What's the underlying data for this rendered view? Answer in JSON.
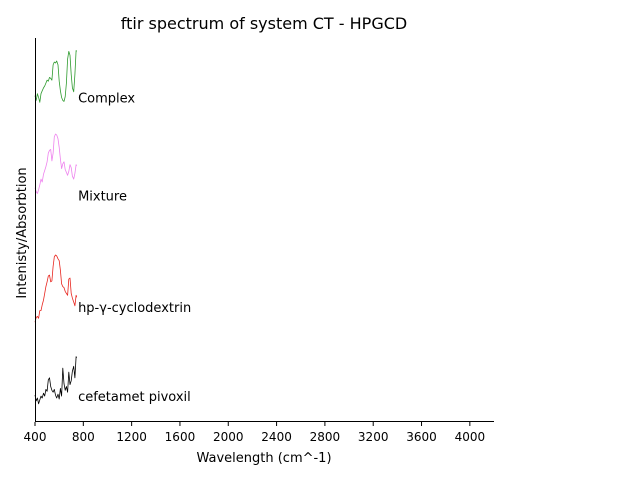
{
  "chart_data": {
    "type": "line",
    "title": "ftir spectrum of system CT - HPGCD",
    "xlabel": "Wavelength (cm^-1)",
    "ylabel": "Intenisty/Absorbtion",
    "xlim": [
      400,
      4200
    ],
    "x_ticks": [
      400,
      800,
      1200,
      1600,
      2000,
      2400,
      2800,
      3200,
      3600,
      4000
    ],
    "x_tick_labels": [
      "400",
      "800",
      "1200",
      "1600",
      "2000",
      "2400",
      "2800",
      "3200",
      "3600",
      "4000"
    ],
    "ylim": [
      0,
      4
    ],
    "grid": false,
    "legend": "none",
    "series": [
      {
        "name": "cefetamet pivoxil",
        "color": "#000000",
        "label_at": [
          740,
          0.27
        ],
        "x": [
          400,
          410,
          420,
          430,
          440,
          450,
          460,
          470,
          480,
          490,
          500,
          510,
          520,
          530,
          540,
          550,
          560,
          570,
          580,
          590,
          600,
          610,
          620,
          630,
          640,
          650,
          660,
          670,
          680,
          690,
          700,
          710,
          720,
          730,
          740,
          745
        ],
        "y": [
          0.28,
          0.22,
          0.25,
          0.19,
          0.23,
          0.27,
          0.25,
          0.3,
          0.27,
          0.34,
          0.32,
          0.44,
          0.46,
          0.37,
          0.33,
          0.31,
          0.34,
          0.28,
          0.25,
          0.29,
          0.24,
          0.35,
          0.27,
          0.56,
          0.4,
          0.33,
          0.37,
          0.31,
          0.52,
          0.39,
          0.43,
          0.53,
          0.58,
          0.46,
          0.68,
          0.67
        ]
      },
      {
        "name": "hp-γ-cyclodextrin",
        "color": "#e8251e",
        "label_at": [
          740,
          1.2
        ],
        "x": [
          400,
          410,
          420,
          430,
          440,
          450,
          460,
          470,
          480,
          490,
          500,
          510,
          520,
          530,
          540,
          550,
          560,
          570,
          580,
          590,
          600,
          610,
          620,
          630,
          640,
          650,
          660,
          670,
          680,
          690,
          700,
          710,
          720,
          730,
          740,
          745
        ],
        "y": [
          1.04,
          1.09,
          1.1,
          1.08,
          1.16,
          1.16,
          1.22,
          1.27,
          1.34,
          1.41,
          1.46,
          1.52,
          1.53,
          1.46,
          1.47,
          1.62,
          1.72,
          1.74,
          1.73,
          1.7,
          1.68,
          1.58,
          1.44,
          1.41,
          1.4,
          1.36,
          1.34,
          1.32,
          1.49,
          1.5,
          1.34,
          1.29,
          1.25,
          1.21,
          1.32,
          1.3
        ]
      },
      {
        "name": "Mixture",
        "color": "#ee82ee",
        "label_at": [
          740,
          2.36
        ],
        "x": [
          400,
          410,
          420,
          430,
          440,
          450,
          460,
          470,
          480,
          490,
          500,
          510,
          520,
          530,
          540,
          550,
          560,
          570,
          580,
          590,
          600,
          610,
          620,
          630,
          640,
          650,
          660,
          670,
          680,
          690,
          700,
          710,
          720,
          730,
          740,
          745
        ],
        "y": [
          2.44,
          2.4,
          2.38,
          2.42,
          2.47,
          2.53,
          2.5,
          2.58,
          2.62,
          2.66,
          2.71,
          2.8,
          2.83,
          2.84,
          2.72,
          2.8,
          2.97,
          3.0,
          2.99,
          2.95,
          2.86,
          2.74,
          2.64,
          2.69,
          2.71,
          2.63,
          2.6,
          2.57,
          2.61,
          2.68,
          2.65,
          2.56,
          2.53,
          2.59,
          2.68,
          2.67
        ]
      },
      {
        "name": "Complex",
        "color": "#2e9b2e",
        "label_at": [
          740,
          3.38
        ],
        "x": [
          400,
          410,
          420,
          430,
          440,
          450,
          460,
          470,
          480,
          490,
          500,
          510,
          520,
          530,
          540,
          550,
          560,
          570,
          580,
          590,
          600,
          610,
          620,
          630,
          640,
          650,
          660,
          670,
          680,
          690,
          700,
          710,
          720,
          730,
          740,
          745
        ],
        "y": [
          3.4,
          3.35,
          3.42,
          3.38,
          3.33,
          3.42,
          3.45,
          3.48,
          3.5,
          3.53,
          3.56,
          3.55,
          3.59,
          3.58,
          3.56,
          3.72,
          3.75,
          3.74,
          3.76,
          3.72,
          3.55,
          3.45,
          3.38,
          3.35,
          3.34,
          3.39,
          3.53,
          3.78,
          3.86,
          3.82,
          3.62,
          3.48,
          3.44,
          3.62,
          3.87,
          3.86
        ]
      }
    ]
  }
}
